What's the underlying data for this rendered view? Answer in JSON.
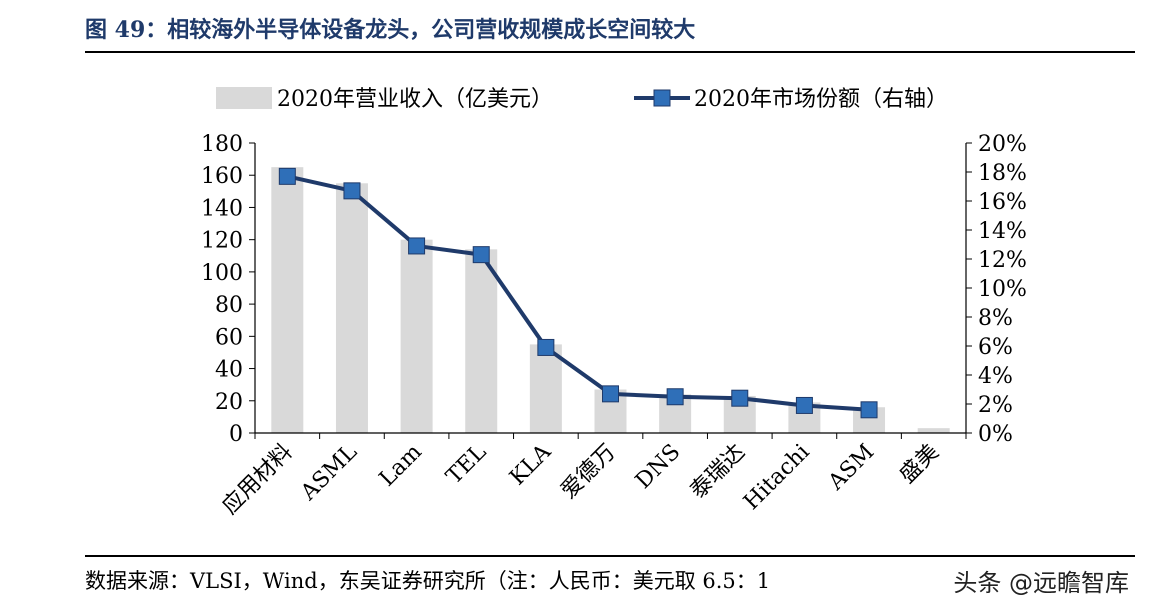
{
  "header": {
    "title": "图 49：相较海外半导体设备龙头，公司营收规模成长空间较大"
  },
  "footer": {
    "source": "数据来源：VLSI，Wind，东吴证券研究所（注：人民币：美元取 6.5：1",
    "watermark": "头条 @远瞻智库"
  },
  "chart_data": {
    "type": "bar",
    "categories": [
      "应用材料",
      "ASML",
      "Lam",
      "TEL",
      "KLA",
      "爱德万",
      "DNS",
      "泰瑞达",
      "Hitachi",
      "ASM",
      "盛美"
    ],
    "series": [
      {
        "name": "2020年营业收入（亿美元）",
        "type": "bar",
        "axis": "left",
        "values": [
          165,
          155,
          120,
          114,
          55,
          27,
          24,
          23,
          19,
          16,
          3
        ]
      },
      {
        "name": "2020年市场份额（右轴）",
        "type": "line",
        "axis": "right",
        "values": [
          17.7,
          16.7,
          12.9,
          12.3,
          5.9,
          2.7,
          2.5,
          2.4,
          1.9,
          1.6,
          null
        ]
      }
    ],
    "left_axis": {
      "ylim": [
        0,
        180
      ],
      "ticks": [
        0,
        20,
        40,
        60,
        80,
        100,
        120,
        140,
        160,
        180
      ]
    },
    "right_axis": {
      "ylim": [
        0,
        20
      ],
      "ticks": [
        "0%",
        "2%",
        "4%",
        "6%",
        "8%",
        "10%",
        "12%",
        "14%",
        "16%",
        "18%",
        "20%"
      ]
    },
    "legend_position": "top",
    "grid": false,
    "colors": {
      "bar": "#d9d9d9",
      "line": "#1f3a6a",
      "marker": "#2f6fb8"
    }
  }
}
